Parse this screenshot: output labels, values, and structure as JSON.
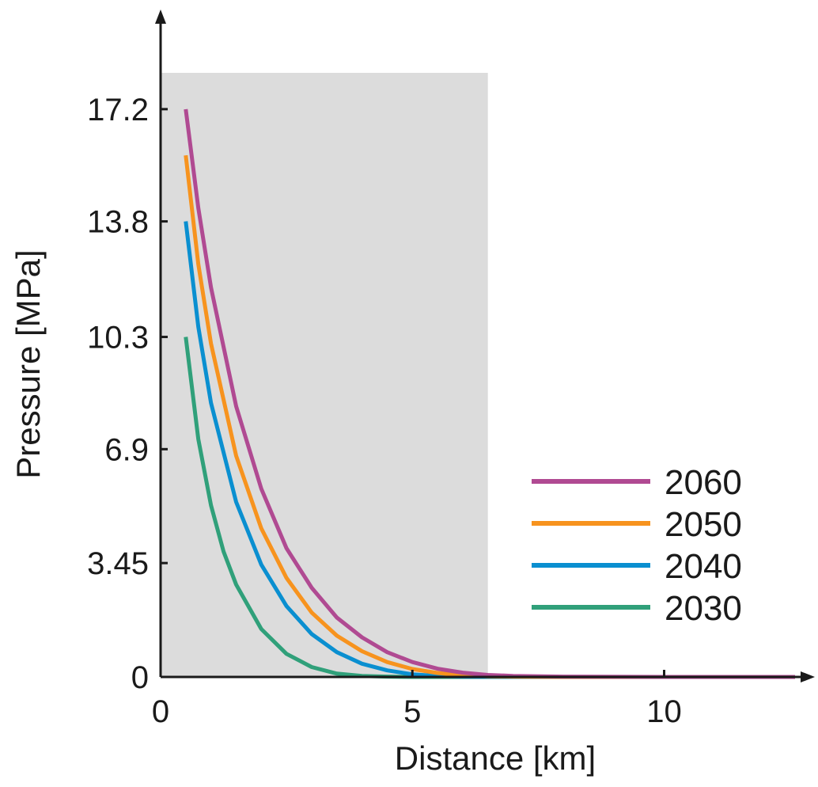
{
  "chart_data": {
    "type": "line",
    "xlabel": "Distance [km]",
    "ylabel": "Pressure [MPa]",
    "xlim": [
      0,
      12.6
    ],
    "ylim": [
      0,
      18.3
    ],
    "x_ticks": [
      0,
      5,
      10
    ],
    "x_tick_labels": [
      "0",
      "5",
      "10"
    ],
    "y_ticks": [
      0,
      3.45,
      6.9,
      10.3,
      13.8,
      17.2
    ],
    "y_tick_labels": [
      "0",
      "3.45",
      "6.9",
      "10.3",
      "13.8",
      "17.2"
    ],
    "grid": false,
    "legend_position": "bottom-right",
    "shaded_region": {
      "x": [
        0,
        6.5
      ],
      "color": "#dcdcdc"
    },
    "series": [
      {
        "name": "2060",
        "color": "#b04a92",
        "x": [
          0.5,
          0.75,
          1.0,
          1.5,
          2.0,
          2.5,
          3.0,
          3.5,
          4.0,
          4.5,
          5.0,
          5.5,
          6.0,
          6.5,
          7.0,
          8.0,
          10.0,
          12.6
        ],
        "y": [
          17.2,
          14.2,
          11.8,
          8.2,
          5.7,
          3.9,
          2.7,
          1.8,
          1.2,
          0.75,
          0.45,
          0.25,
          0.13,
          0.06,
          0.03,
          0.01,
          0.0,
          0.0
        ]
      },
      {
        "name": "2050",
        "color": "#f7931e",
        "x": [
          0.5,
          0.75,
          1.0,
          1.5,
          2.0,
          2.5,
          3.0,
          3.5,
          4.0,
          4.5,
          5.0,
          5.5,
          6.0,
          6.5,
          7.0,
          8.0,
          10.0,
          12.6
        ],
        "y": [
          15.8,
          12.5,
          10.1,
          6.7,
          4.5,
          3.0,
          1.95,
          1.25,
          0.78,
          0.45,
          0.24,
          0.12,
          0.05,
          0.02,
          0.01,
          0.0,
          0.0,
          0.0
        ]
      },
      {
        "name": "2040",
        "color": "#0a8fd0",
        "x": [
          0.5,
          0.75,
          1.0,
          1.5,
          2.0,
          2.5,
          3.0,
          3.5,
          4.0,
          4.5,
          5.0,
          5.5,
          6.0,
          7.0,
          8.0,
          10.0,
          12.6
        ],
        "y": [
          13.8,
          10.6,
          8.3,
          5.3,
          3.4,
          2.15,
          1.3,
          0.75,
          0.4,
          0.2,
          0.08,
          0.03,
          0.01,
          0.0,
          0.0,
          0.0,
          0.0
        ]
      },
      {
        "name": "2030",
        "color": "#30a07a",
        "x": [
          0.5,
          0.75,
          1.0,
          1.25,
          1.5,
          2.0,
          2.5,
          3.0,
          3.5,
          4.0,
          4.5,
          5.0,
          6.0,
          8.0,
          10.0,
          12.6
        ],
        "y": [
          10.3,
          7.2,
          5.2,
          3.8,
          2.8,
          1.45,
          0.7,
          0.3,
          0.1,
          0.03,
          0.01,
          0.0,
          0.0,
          0.0,
          0.0,
          0.0
        ]
      }
    ]
  }
}
